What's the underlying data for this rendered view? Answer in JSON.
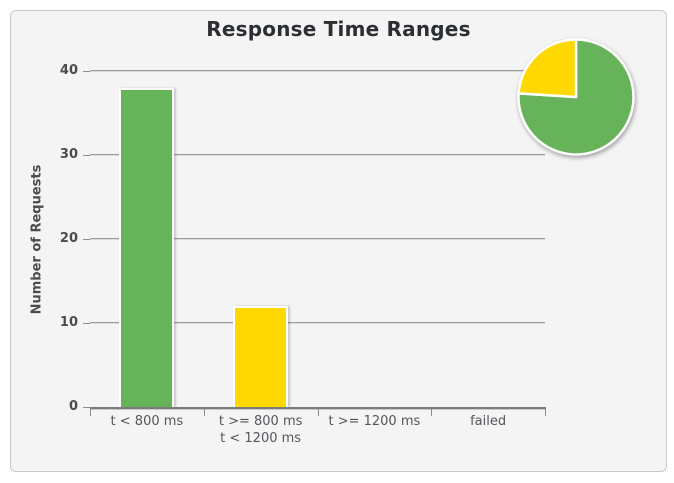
{
  "chart_data": {
    "type": "bar",
    "title": "Response Time Ranges",
    "ylabel": "Number of Requests",
    "xlabel": "",
    "ylim": [
      0,
      40
    ],
    "yticks": [
      0,
      10,
      20,
      30,
      40
    ],
    "grid": "horizontal",
    "bars": [
      {
        "label": "t < 800 ms",
        "value": 38,
        "color": "#67b35a"
      },
      {
        "label": "t >= 800 ms\nt < 1200 ms",
        "value": 12,
        "color": "#fed800"
      },
      {
        "label": "t >= 1200 ms",
        "value": 0
      },
      {
        "label": "failed",
        "value": 0
      }
    ],
    "inset_pie": {
      "type": "pie",
      "start": "top",
      "direction": "clockwise",
      "slices": [
        {
          "name": "t < 800 ms",
          "value": 38,
          "color": "#67b35a"
        },
        {
          "name": "t >= 800 ms / t < 1200 ms",
          "value": 12,
          "color": "#fed800"
        }
      ]
    }
  },
  "colors": {
    "panel_bg": "#f4f4f4",
    "panel_border": "#c9c9c9",
    "gridline": "#9d9d9d",
    "axis_line": "#7c7c7c",
    "title_text": "#2b2e33",
    "tick_text": "#4c4c4c",
    "category_text": "#55565c",
    "pie_outline": "#ffffff"
  }
}
